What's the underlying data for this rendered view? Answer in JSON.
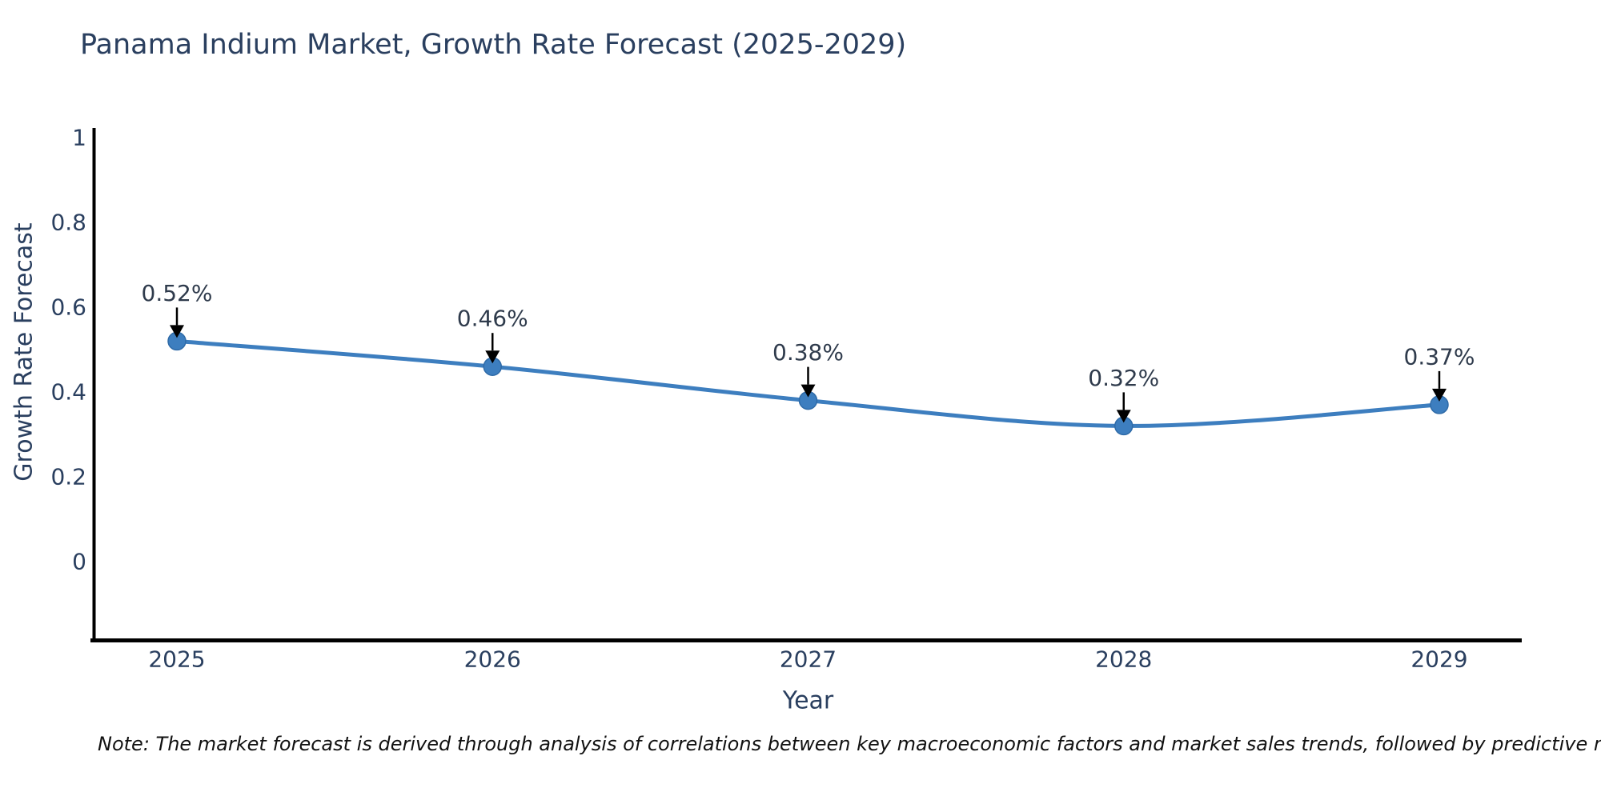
{
  "title": "Panama Indium Market, Growth Rate Forecast (2025-2029)",
  "note": "Note: The market forecast is derived through analysis of correlations between key macroeconomic factors and market sales trends, followed by predictive modeling to project future sales",
  "chart_data": {
    "type": "line",
    "x": [
      2025,
      2026,
      2027,
      2028,
      2029
    ],
    "series": [
      {
        "name": "Growth Rate Forecast",
        "values": [
          0.52,
          0.46,
          0.38,
          0.32,
          0.37
        ]
      }
    ],
    "point_labels": [
      "0.52%",
      "0.46%",
      "0.38%",
      "0.32%",
      "0.37%"
    ],
    "title": "Panama Indium Market, Growth Rate Forecast (2025-2029)",
    "xlabel": "Year",
    "ylabel": "Growth Rate Forecast",
    "yticks": [
      0,
      0.2,
      0.4,
      0.6,
      0.8,
      1
    ],
    "ytick_labels": [
      "0",
      "0.2",
      "0.4",
      "0.6",
      "0.8",
      "1"
    ],
    "xtick_labels": [
      "2025",
      "2026",
      "2027",
      "2028",
      "2029"
    ],
    "ylim": [
      -0.19,
      1.02
    ],
    "grid": false,
    "legend": "none",
    "line_style": "spline",
    "annotations": "value labels with black down arrows above each point"
  },
  "colors": {
    "line": "#3d7ebf",
    "marker": "#3d7ebf",
    "marker_edge": "#2f6ba8",
    "axis": "#000000",
    "tick_text": "#2a3f5f",
    "axis_label_text": "#2a3f5f",
    "title_text": "#2a3f5f",
    "annotation_text": "#2f3b4c",
    "arrow": "#000000",
    "background": "#ffffff"
  }
}
